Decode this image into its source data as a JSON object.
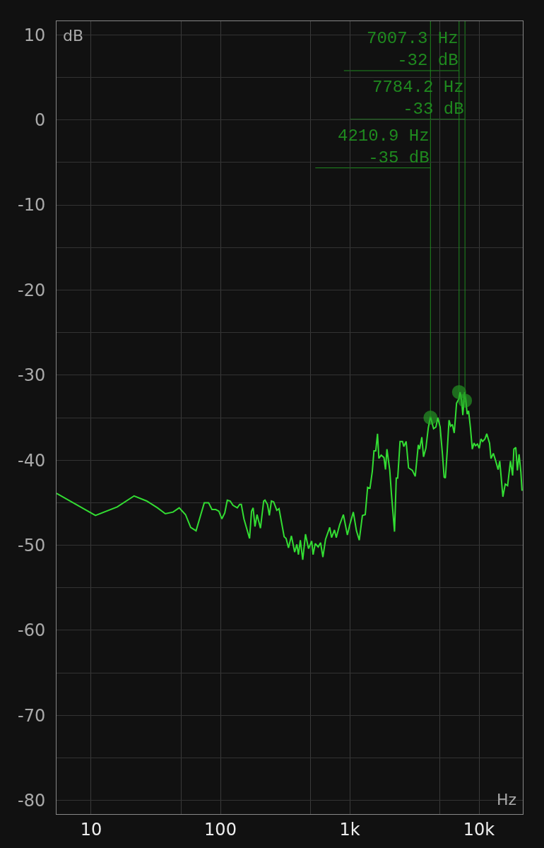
{
  "chart_data": {
    "type": "line",
    "xlabel": "Hz",
    "ylabel": "dB",
    "log": "x",
    "grid": true,
    "xlim": [
      5.4,
      21800
    ],
    "xticks": [
      {
        "value": 10,
        "label": "10"
      },
      {
        "value": 50,
        "label": null
      },
      {
        "value": 100,
        "label": "100"
      },
      {
        "value": 500,
        "label": null
      },
      {
        "value": 1000,
        "label": "1k"
      },
      {
        "value": 5000,
        "label": null
      },
      {
        "value": 10000,
        "label": "10k"
      }
    ],
    "ylim": [
      -81.6,
      11.6
    ],
    "yticks": [
      -80,
      {
        "value": -75,
        "label": null
      },
      -70,
      {
        "value": -65,
        "label": null
      },
      -60,
      {
        "value": -55,
        "label": null
      },
      -50,
      {
        "value": -45,
        "label": null
      },
      -40,
      {
        "value": -35,
        "label": null
      },
      -30,
      {
        "value": -25,
        "label": null
      },
      -20,
      {
        "value": -15,
        "label": null
      },
      -10,
      {
        "value": -5,
        "label": null
      },
      0,
      {
        "value": 5,
        "label": null
      },
      10
    ],
    "annotations": [
      {
        "text": "7007.3 Hz\n-32 dB",
        "x": 7007.3,
        "y": -32
      },
      {
        "text": "7784.2 Hz\n-33 dB",
        "x": 7784.2,
        "y": -33
      },
      {
        "text": "4210.9 Hz\n-35 dB",
        "x": 4210.9,
        "y": -35
      }
    ],
    "series": [
      {
        "color": "#33dd33",
        "x": [
          5.4,
          10.8,
          15.9,
          21.5,
          26.9,
          32.6,
          37.5,
          43,
          48,
          53.7,
          58.9,
          64.8,
          75,
          81,
          86,
          92,
          97.3,
          102.5,
          108,
          113,
          119,
          125,
          135,
          141,
          145,
          152,
          168,
          174,
          179,
          185,
          192,
          204,
          216,
          221,
          231,
          239,
          248,
          258,
          273,
          284,
          311,
          322,
          336,
          354,
          375,
          390,
          401,
          415,
          433,
          455,
          480,
          508,
          521,
          541,
          570,
          595,
          620,
          650,
          700,
          724,
          762,
          787,
          835,
          893,
          959,
          1000,
          1066,
          1127,
          1185,
          1253,
          1318,
          1375,
          1434,
          1495,
          1540,
          1590,
          1640,
          1680,
          1750,
          1840,
          1890,
          1940,
          2040,
          2100,
          2220,
          2290,
          2350,
          2450,
          2560,
          2620,
          2730,
          2850,
          3050,
          3210,
          3390,
          3470,
          3610,
          3720,
          3880,
          4050,
          4210,
          4450,
          4640,
          4800,
          5000,
          5220,
          5370,
          5490,
          5670,
          5860,
          6030,
          6220,
          6430,
          6700,
          6980,
          7130,
          7340,
          7490,
          7740,
          7900,
          8100,
          8300,
          8580,
          8870,
          9140,
          9400,
          9720,
          10040,
          10350,
          10650,
          11100,
          11470,
          12060,
          12370,
          12900,
          13460,
          14040,
          14460,
          15290,
          15950,
          16630,
          17500,
          18180,
          18590,
          19230,
          19800,
          20400,
          21060,
          21500
        ],
        "values": [
          -43.9,
          -46.5,
          -45.5,
          -44.2,
          -44.8,
          -45.6,
          -46.3,
          -46.1,
          -45.6,
          -46.4,
          -47.9,
          -48.3,
          -45.0,
          -45.0,
          -45.8,
          -45.8,
          -46.0,
          -46.9,
          -46.2,
          -44.7,
          -44.8,
          -45.3,
          -45.6,
          -45.2,
          -45.2,
          -46.9,
          -49.2,
          -46.0,
          -45.6,
          -47.8,
          -46.4,
          -48.0,
          -44.8,
          -44.7,
          -45.2,
          -46.5,
          -44.8,
          -44.9,
          -45.9,
          -45.7,
          -49.0,
          -49.2,
          -50.3,
          -48.9,
          -50.8,
          -49.9,
          -51.1,
          -49.4,
          -51.7,
          -48.7,
          -50.4,
          -49.5,
          -51.1,
          -49.8,
          -50.2,
          -49.7,
          -51.4,
          -49.3,
          -47.9,
          -49.1,
          -48.2,
          -49.1,
          -47.6,
          -46.4,
          -48.8,
          -47.6,
          -46.1,
          -48.3,
          -49.4,
          -46.5,
          -46.4,
          -43.2,
          -43.3,
          -41.3,
          -38.9,
          -38.9,
          -36.9,
          -39.8,
          -39.4,
          -39.7,
          -41.1,
          -38.7,
          -41.2,
          -43.9,
          -48.4,
          -42.1,
          -42.1,
          -37.8,
          -37.8,
          -38.4,
          -37.8,
          -40.9,
          -41.2,
          -41.9,
          -38.2,
          -38.7,
          -37.3,
          -39.6,
          -38.6,
          -36.2,
          -34.9,
          -36.3,
          -36.1,
          -35.0,
          -36.1,
          -39.4,
          -42.0,
          -42.1,
          -39.0,
          -35.3,
          -36.0,
          -35.8,
          -36.8,
          -33.3,
          -32.8,
          -32.0,
          -33.0,
          -34.7,
          -32.0,
          -33.0,
          -34.6,
          -34.2,
          -36.2,
          -38.7,
          -38.0,
          -38.3,
          -38.1,
          -38.6,
          -37.5,
          -37.8,
          -37.5,
          -36.9,
          -38.0,
          -39.8,
          -39.2,
          -40.1,
          -41.1,
          -40.1,
          -44.3,
          -42.8,
          -43.0,
          -40.1,
          -41.8,
          -38.7,
          -38.5,
          -41.2,
          -39.3,
          -41.4,
          -43.6
        ]
      }
    ]
  }
}
